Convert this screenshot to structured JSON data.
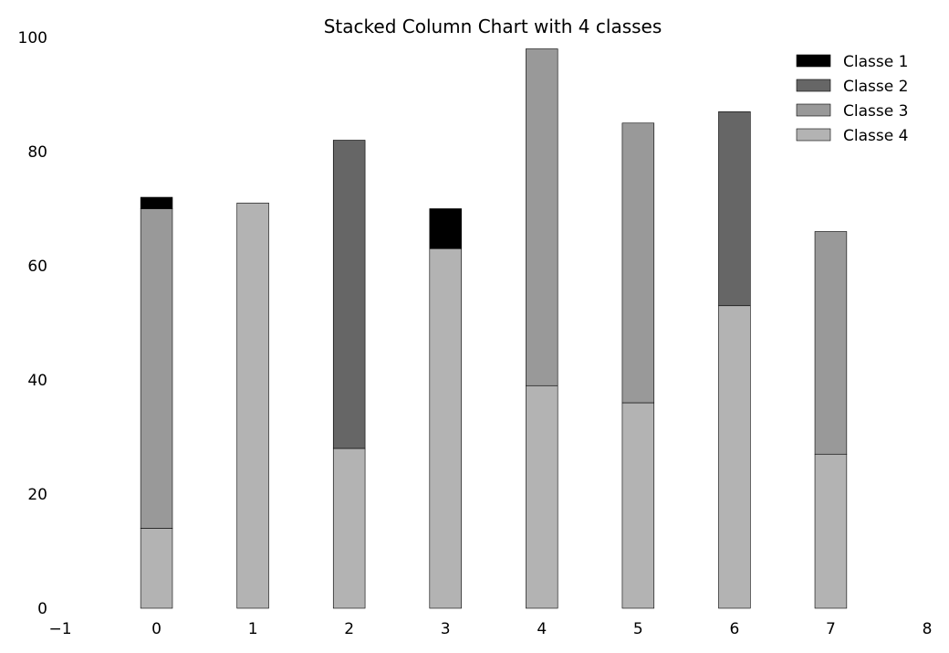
{
  "chart_data": {
    "type": "bar",
    "stacked": true,
    "title": "Stacked Column Chart with 4 classes",
    "xlabel": "",
    "ylabel": "",
    "xlim": [
      -1,
      8
    ],
    "ylim": [
      0,
      100
    ],
    "x_ticks": [
      "−1",
      "0",
      "1",
      "2",
      "3",
      "4",
      "5",
      "6",
      "7",
      "8"
    ],
    "y_ticks": [
      "0",
      "20",
      "40",
      "60",
      "80",
      "100"
    ],
    "grid": false,
    "legend_position": "top-right",
    "x": [
      0,
      1,
      2,
      3,
      4,
      5,
      6,
      7
    ],
    "series": [
      {
        "name": "Classe 4",
        "color": "#b3b3b3",
        "values": [
          14,
          71,
          28,
          63,
          39,
          36,
          53,
          27
        ]
      },
      {
        "name": "Classe 3",
        "color": "#999999",
        "values": [
          56,
          0,
          0,
          0,
          59,
          49,
          0,
          39
        ]
      },
      {
        "name": "Classe 2",
        "color": "#666666",
        "values": [
          0,
          0,
          54,
          0,
          0,
          0,
          34,
          0
        ]
      },
      {
        "name": "Classe 1",
        "color": "#000000",
        "values": [
          2,
          0,
          0,
          7,
          0,
          0,
          0,
          0
        ]
      }
    ],
    "legend_order": [
      "Classe 1",
      "Classe 2",
      "Classe 3",
      "Classe 4"
    ]
  }
}
